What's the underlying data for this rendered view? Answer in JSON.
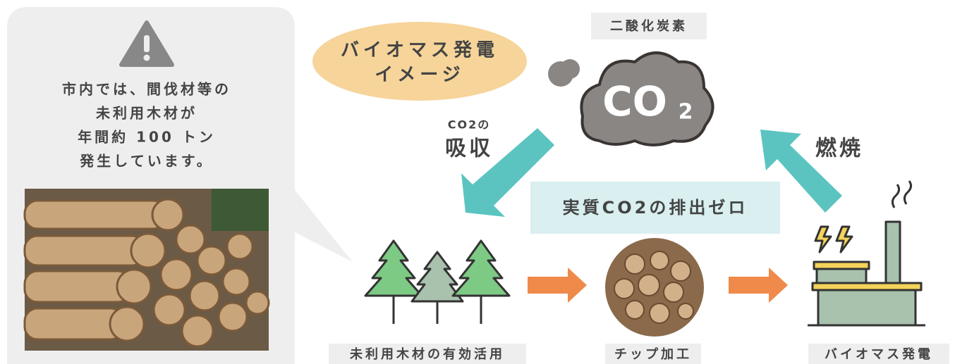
{
  "callout": {
    "lines": [
      "市内では、間伐材等の",
      "未利用木材が",
      "年間約 100 トン",
      "発生しています。"
    ]
  },
  "title": {
    "lines": [
      "バイオマス発電",
      "イメージ"
    ]
  },
  "co2_label": "二酸化炭素",
  "cloud": {
    "main": "CO",
    "sub": "2"
  },
  "absorb": {
    "note": "CO2の",
    "label": "吸収"
  },
  "burn": "燃焼",
  "zero_emission": "実質CO2の排出ゼロ",
  "steps": [
    "未利用木材の有効活用",
    "チップ加工",
    "バイオマス発電"
  ]
}
